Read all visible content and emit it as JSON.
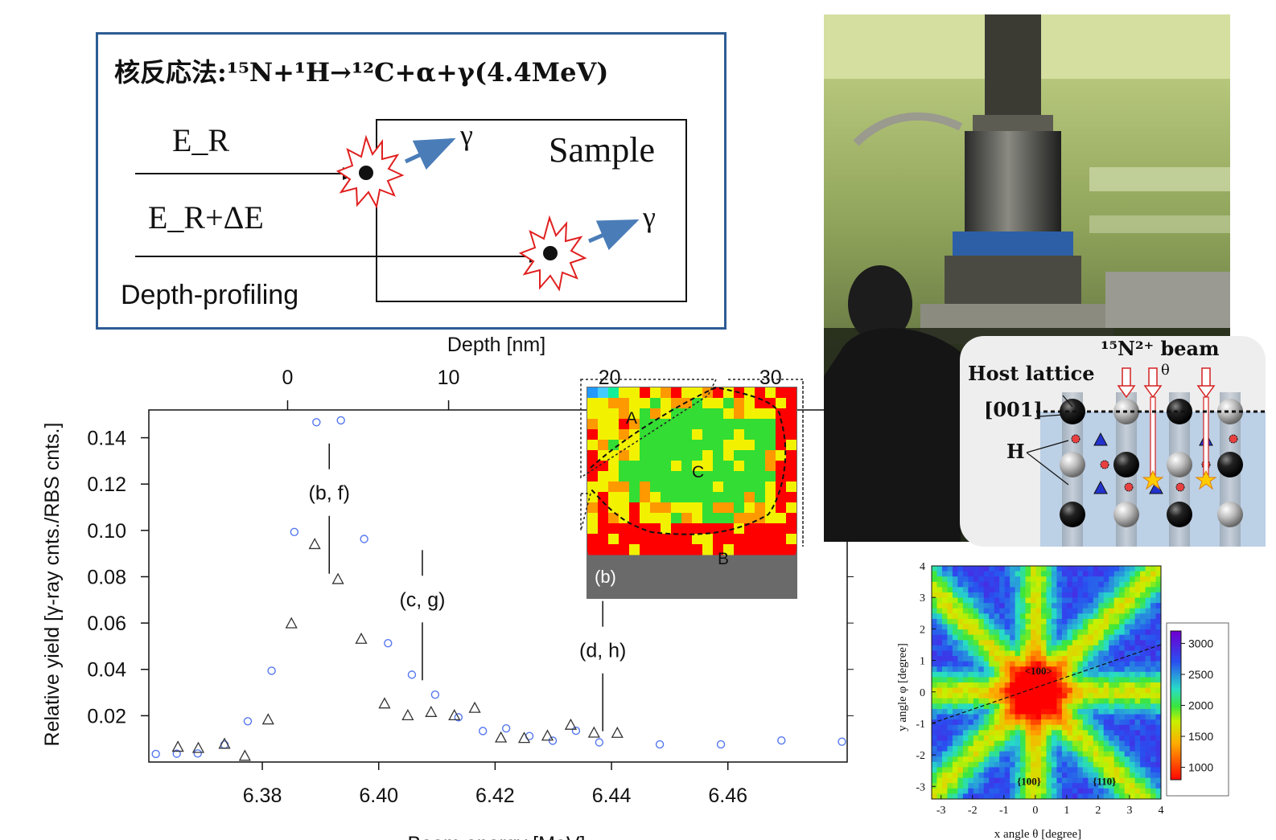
{
  "diagram": {
    "title": "核反応法:¹⁵N+¹H→¹²C+α+γ(4.4MeV)",
    "beam1_label": "E_R",
    "beam2_label": "E_R+ΔE",
    "gamma_label": "γ",
    "sample_label": "Sample",
    "footer_label": "Depth-profiling"
  },
  "photo": {
    "description_icon": "lab-photo"
  },
  "lattice": {
    "beam_label": "¹⁵N²⁺ beam",
    "theta_label": "θ",
    "host_label": "Host lattice",
    "axis_label": "[001]",
    "h_label": "H"
  },
  "inset_b": {
    "panel_label": "(b)",
    "region_a": "A",
    "region_b": "B",
    "region_c": "C",
    "colors": {
      "green": "#33dd33",
      "yellow": "#f2f200",
      "red": "#ff0000",
      "orange": "#ff9900",
      "gray": "#6a6a6a"
    }
  },
  "chart_data": [
    {
      "type": "scatter",
      "xlabel": "Beam energy [MeV]",
      "ylabel": "Relative yield [γ-ray cnts./RBS cnts.]",
      "x2label": "Depth [nm]",
      "xlim": [
        6.3605,
        6.4805
      ],
      "ylim": [
        0,
        0.152
      ],
      "x2lim": [
        -8.62,
        34.76
      ],
      "xticks": [
        "6.38",
        "6.40",
        "6.42",
        "6.44",
        "6.46"
      ],
      "xtick_values": [
        6.38,
        6.4,
        6.42,
        6.44,
        6.46
      ],
      "yticks": [
        "0.02",
        "0.04",
        "0.06",
        "0.08",
        "0.10",
        "0.12",
        "0.14"
      ],
      "ytick_values": [
        0.02,
        0.04,
        0.06,
        0.08,
        0.1,
        0.12,
        0.14
      ],
      "x2ticks": [
        "0",
        "10",
        "20",
        "30"
      ],
      "x2tick_values": [
        0,
        10,
        20,
        30
      ],
      "series": [
        {
          "marker": "circle",
          "color": "#5577ee",
          "points": [
            [
              6.3617,
              0.0035
            ],
            [
              6.3653,
              0.0036
            ],
            [
              6.3689,
              0.0037
            ],
            [
              6.3735,
              0.0075
            ],
            [
              6.3775,
              0.0176
            ],
            [
              6.3816,
              0.0394
            ],
            [
              6.3855,
              0.0993
            ],
            [
              6.3893,
              0.1467
            ],
            [
              6.3935,
              0.1475
            ],
            [
              6.3975,
              0.0963
            ],
            [
              6.4016,
              0.0513
            ],
            [
              6.4057,
              0.0377
            ],
            [
              6.4097,
              0.0291
            ],
            [
              6.4137,
              0.0193
            ],
            [
              6.4179,
              0.0134
            ],
            [
              6.4219,
              0.0145
            ],
            [
              6.4259,
              0.0112
            ],
            [
              6.4299,
              0.0092
            ],
            [
              6.4339,
              0.0135
            ],
            [
              6.4379,
              0.0085
            ],
            [
              6.4483,
              0.0076
            ],
            [
              6.4588,
              0.0076
            ],
            [
              6.4692,
              0.0093
            ],
            [
              6.4796,
              0.0088
            ]
          ]
        },
        {
          "marker": "triangle",
          "color": "#333333",
          "points": [
            [
              6.3655,
              0.0064
            ],
            [
              6.369,
              0.0059
            ],
            [
              6.3735,
              0.0077
            ],
            [
              6.377,
              0.0025
            ],
            [
              6.381,
              0.0182
            ],
            [
              6.385,
              0.0597
            ],
            [
              6.389,
              0.0939
            ],
            [
              6.393,
              0.0788
            ],
            [
              6.397,
              0.053
            ],
            [
              6.401,
              0.0251
            ],
            [
              6.405,
              0.02
            ],
            [
              6.409,
              0.0214
            ],
            [
              6.413,
              0.02
            ],
            [
              6.4165,
              0.0232
            ],
            [
              6.421,
              0.0104
            ],
            [
              6.425,
              0.0102
            ],
            [
              6.429,
              0.0112
            ],
            [
              6.433,
              0.0159
            ],
            [
              6.437,
              0.0125
            ],
            [
              6.441,
              0.0124
            ]
          ]
        }
      ],
      "annotations": [
        {
          "text": "(b, f)",
          "x": 6.3915,
          "y": 0.116
        },
        {
          "text": "(c, g)",
          "x": 6.4075,
          "y": 0.07
        },
        {
          "text": "(d, h)",
          "x": 6.4385,
          "y": 0.048
        }
      ]
    },
    {
      "type": "heatmap",
      "xlabel": "x angle θ [degree]",
      "ylabel": "y angle φ [degree]",
      "xlim": [
        -3.3,
        4
      ],
      "ylim": [
        -3.4,
        4
      ],
      "xticks": [
        "-3",
        "-2",
        "-1",
        "0",
        "1",
        "2",
        "3",
        "4"
      ],
      "xtick_values": [
        -3,
        -2,
        -1,
        0,
        1,
        2,
        3,
        4
      ],
      "yticks": [
        "-3",
        "-2",
        "-1",
        "0",
        "1",
        "2",
        "3",
        "4"
      ],
      "ytick_values": [
        -3,
        -2,
        -1,
        0,
        1,
        2,
        3,
        4
      ],
      "colorbar_ticks": [
        "1000",
        "1500",
        "2000",
        "2500",
        "3000"
      ],
      "colorbar_values": [
        1000,
        1500,
        2000,
        2500,
        3000
      ],
      "colorbar_range": [
        800,
        3200
      ],
      "labels": [
        "<100>",
        "{100}",
        "{110}"
      ]
    }
  ]
}
